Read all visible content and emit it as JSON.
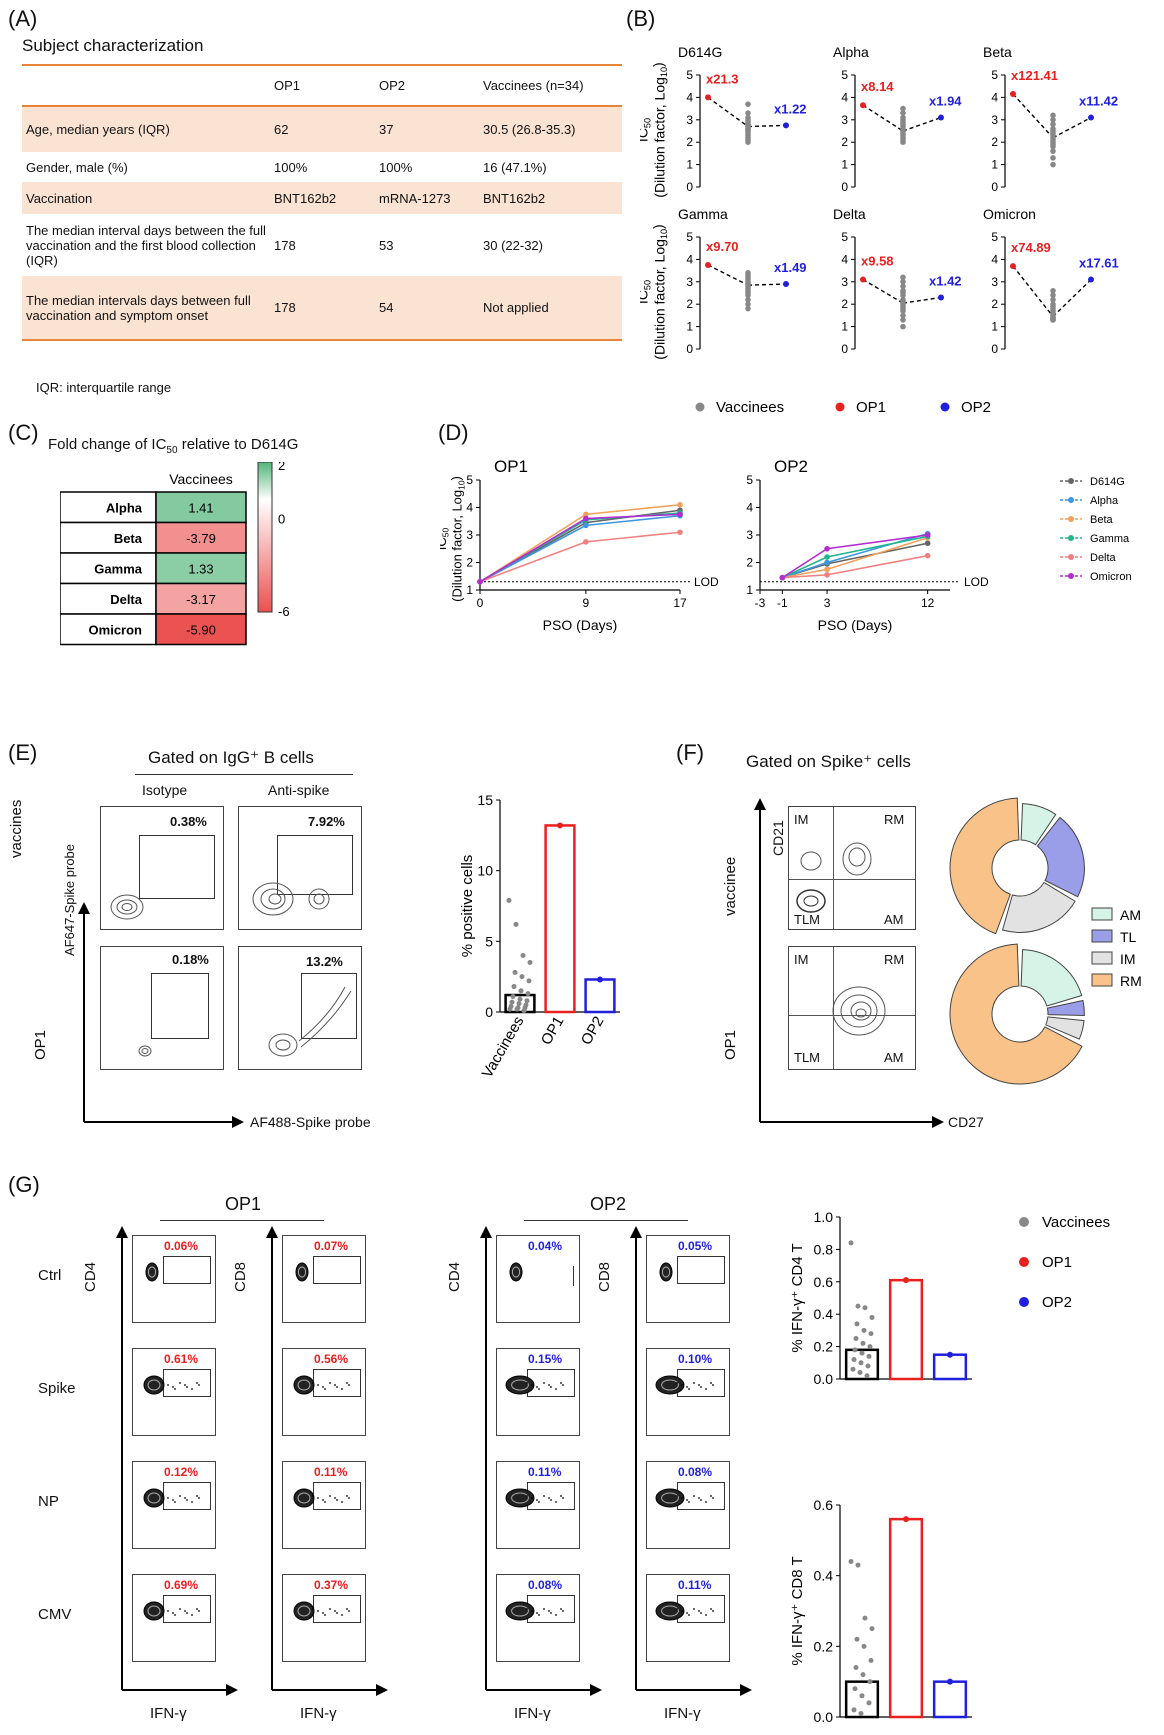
{
  "panels": {
    "A": "(A)",
    "B": "(B)",
    "C": "(C)",
    "D": "(D)",
    "E": "(E)",
    "F": "(F)",
    "G": "(G)"
  },
  "table": {
    "title": "Subject characterization",
    "headers": [
      "",
      "OP1",
      "OP2",
      "Vaccinees (n=34)"
    ],
    "rows": [
      [
        "Age, median years (IQR)",
        "62",
        "37",
        "30.5 (26.8-35.3)"
      ],
      [
        "Gender, male (%)",
        "100%",
        "100%",
        "16 (47.1%)"
      ],
      [
        "Vaccination",
        "BNT162b2",
        "mRNA-1273",
        "BNT162b2"
      ],
      [
        "The median interval days between the full vaccination and the first blood collection (IQR)",
        "178",
        "53",
        "30 (22-32)"
      ],
      [
        "The median intervals days between full vaccination and symptom onset",
        "178",
        "54",
        "Not applied"
      ]
    ],
    "footnote": "IQR: interquartile range",
    "stripe_color": "#fbe3d3",
    "rule_color": "#e8833a"
  },
  "ic50_ylabel_line1": "IC50",
  "ic50_ylabel_line2": "(Dilution factor, Log10)",
  "panel_b_legend": [
    "Vaccinees",
    "OP1",
    "OP2"
  ],
  "colors": {
    "vaccinees": "#888888",
    "op1": "#e8201e",
    "op2": "#1f1fdd"
  },
  "panel_c": {
    "title": "Fold change of IC50 relative to D614G",
    "column": "Vaccinees",
    "scale_max": "2",
    "scale_mid": "0",
    "scale_min": "-6"
  },
  "panel_e": {
    "gated_title": "Gated on IgG⁺ B cells",
    "col_labels": [
      "Isotype",
      "Anti-spike"
    ],
    "row_labels": [
      "vaccines",
      "OP1"
    ],
    "y_axis": "AF647-Spike probe",
    "x_axis": "AF488-Spike probe",
    "percents": [
      "0.38%",
      "7.92%",
      "0.18%",
      "13.2%"
    ],
    "bar_ylabel": "% positive cells"
  },
  "panel_f": {
    "gated_title": "Gated on Spike⁺ cells",
    "row_labels": [
      "vaccinee",
      "OP1"
    ],
    "quadrants": [
      "IM",
      "RM",
      "TLM",
      "AM"
    ],
    "y_axis": "CD21",
    "x_axis": "CD27",
    "legend": [
      "AM",
      "TL",
      "IM",
      "RM"
    ],
    "legend_colors": [
      "#d5f3e6",
      "#9a9ee8",
      "#e2e2e2",
      "#f9c289"
    ]
  },
  "panel_g": {
    "groups": [
      "OP1",
      "OP2"
    ],
    "row_labels": [
      "Ctrl",
      "Spike",
      "NP",
      "CMV"
    ],
    "ylabel_cd4": "CD4",
    "ylabel_cd8": "CD8",
    "xlabel": "IFN-γ",
    "op1_cd4": [
      "0.06%",
      "0.61%",
      "0.12%",
      "0.69%"
    ],
    "op1_cd8": [
      "0.07%",
      "0.56%",
      "0.11%",
      "0.37%"
    ],
    "op2_cd4": [
      "0.04%",
      "0.15%",
      "0.11%",
      "0.08%"
    ],
    "op2_cd8": [
      "0.05%",
      "0.10%",
      "0.08%",
      "0.11%"
    ],
    "legend": [
      "Vaccinees",
      "OP1",
      "OP2"
    ],
    "cd4_ylabel": "% IFN-γ⁺ CD4 T",
    "cd8_ylabel": "% IFN-γ⁺ CD8 T"
  },
  "chart_data": [
    {
      "type": "scatter",
      "panel": "B",
      "ylabel": "IC50 (Dilution factor, Log10)",
      "ylim": [
        0,
        5
      ],
      "subplots": [
        {
          "title": "D614G",
          "op1": 4.0,
          "op2": 2.75,
          "vacc_median": 2.7,
          "op1_fold": "x21.3",
          "op2_fold": "x1.22",
          "vaccinees": [
            3.7,
            3.3,
            3.1,
            3.0,
            2.9,
            2.8,
            2.8,
            2.7,
            2.7,
            2.6,
            2.6,
            2.5,
            2.5,
            2.4,
            2.3,
            2.2,
            2.1,
            2.0
          ]
        },
        {
          "title": "Alpha",
          "op1": 3.65,
          "op2": 3.1,
          "vacc_median": 2.5,
          "op1_fold": "x8.14",
          "op2_fold": "x1.94",
          "vaccinees": [
            3.5,
            3.3,
            3.1,
            3.0,
            2.9,
            2.8,
            2.7,
            2.6,
            2.5,
            2.5,
            2.4,
            2.3,
            2.2,
            2.1,
            2.0
          ]
        },
        {
          "title": "Beta",
          "op1": 4.15,
          "op2": 3.1,
          "vacc_median": 2.2,
          "op1_fold": "x121.41",
          "op2_fold": "x11.42",
          "vaccinees": [
            3.2,
            3.0,
            2.8,
            2.6,
            2.5,
            2.4,
            2.3,
            2.2,
            2.1,
            2.0,
            1.9,
            1.8,
            1.6,
            1.3,
            1.0
          ]
        },
        {
          "title": "Gamma",
          "op1": 3.75,
          "op2": 2.9,
          "vacc_median": 2.85,
          "op1_fold": "x9.70",
          "op2_fold": "x1.49",
          "vaccinees": [
            3.4,
            3.3,
            3.2,
            3.1,
            3.0,
            2.9,
            2.9,
            2.8,
            2.7,
            2.6,
            2.5,
            2.4,
            2.2,
            2.0,
            1.8
          ]
        },
        {
          "title": "Delta",
          "op1": 3.1,
          "op2": 2.3,
          "vacc_median": 2.05,
          "op1_fold": "x9.58",
          "op2_fold": "x1.42",
          "vaccinees": [
            3.2,
            3.0,
            2.8,
            2.6,
            2.5,
            2.4,
            2.2,
            2.1,
            2.0,
            1.9,
            1.8,
            1.7,
            1.5,
            1.3,
            1.0
          ]
        },
        {
          "title": "Omicron",
          "op1": 3.7,
          "op2": 3.1,
          "vacc_median": 1.45,
          "op1_fold": "x74.89",
          "op2_fold": "x17.61",
          "vaccinees": [
            2.6,
            2.4,
            2.2,
            2.0,
            1.9,
            1.8,
            1.7,
            1.6,
            1.5,
            1.4,
            1.4,
            1.35,
            1.3,
            1.3,
            1.3
          ]
        }
      ]
    },
    {
      "type": "heatmap",
      "panel": "C",
      "rows": [
        "Alpha",
        "Beta",
        "Gamma",
        "Delta",
        "Omicron"
      ],
      "values": [
        1.41,
        -3.79,
        1.33,
        -3.17,
        -5.9
      ],
      "value_labels": [
        "1.41",
        "-3.79",
        "1.33",
        "-3.17",
        "-5.90"
      ],
      "range": [
        -6,
        2
      ]
    },
    {
      "type": "line",
      "panel": "D",
      "xlabel": "PSO (Days)",
      "ylabel": "IC50 (Dilution factor, Log10)",
      "ylim": [
        1,
        5
      ],
      "lod_label": "LOD",
      "lod": 1.3,
      "series_names": [
        "D614G",
        "Alpha",
        "Beta",
        "Gamma",
        "Delta",
        "Omicron"
      ],
      "series_colors": [
        "#666666",
        "#3c97e0",
        "#f2a15b",
        "#1fb58f",
        "#f07f7f",
        "#b42bd1"
      ],
      "plots": [
        {
          "title": "OP1",
          "x": [
            0,
            9,
            17
          ],
          "xticks": [
            "0",
            "9",
            "17"
          ],
          "xlim": [
            0,
            17
          ],
          "series": [
            [
              1.3,
              3.45,
              3.9
            ],
            [
              1.3,
              3.35,
              3.7
            ],
            [
              1.3,
              3.75,
              4.1
            ],
            [
              1.3,
              3.55,
              3.8
            ],
            [
              1.3,
              2.75,
              3.1
            ],
            [
              1.3,
              3.6,
              3.75
            ]
          ]
        },
        {
          "title": "OP2",
          "x": [
            -1,
            3,
            12
          ],
          "xticks": [
            "-3",
            "-1",
            "3",
            "12"
          ],
          "xlim": [
            -3,
            14
          ],
          "series": [
            [
              1.45,
              1.95,
              2.7
            ],
            [
              1.45,
              2.0,
              3.05
            ],
            [
              1.45,
              1.75,
              2.9
            ],
            [
              1.45,
              2.2,
              2.95
            ],
            [
              1.45,
              1.55,
              2.25
            ],
            [
              1.45,
              2.5,
              3.0
            ]
          ]
        }
      ]
    },
    {
      "type": "bar",
      "panel": "E",
      "categories": [
        "Vaccinees",
        "OP1",
        "OP2"
      ],
      "values": [
        1.2,
        13.2,
        2.3
      ],
      "ylabel": "% positive cells",
      "ylim": [
        0,
        15
      ],
      "yticks": [
        "0",
        "5",
        "10",
        "15"
      ]
    },
    {
      "type": "pie",
      "panel": "F",
      "donuts": [
        {
          "label": "vaccinee",
          "slices": [
            {
              "name": "AM",
              "value": 10
            },
            {
              "name": "TL",
              "value": 23
            },
            {
              "name": "IM",
              "value": 22
            },
            {
              "name": "RM",
              "value": 45
            }
          ]
        },
        {
          "label": "OP1",
          "slices": [
            {
              "name": "AM",
              "value": 21
            },
            {
              "name": "TL",
              "value": 5
            },
            {
              "name": "IM",
              "value": 6
            },
            {
              "name": "RM",
              "value": 68
            }
          ]
        }
      ]
    },
    {
      "type": "bar",
      "panel": "G-CD4",
      "categories": [
        "Vaccinees",
        "OP1",
        "OP2"
      ],
      "values": [
        0.18,
        0.61,
        0.15
      ],
      "ylabel": "% IFN-γ⁺ CD4 T",
      "ylim": [
        0,
        1.0
      ],
      "yticks": [
        "0.0",
        "0.2",
        "0.4",
        "0.6",
        "0.8",
        "1.0"
      ]
    },
    {
      "type": "bar",
      "panel": "G-CD8",
      "categories": [
        "Vaccinees",
        "OP1",
        "OP2"
      ],
      "values": [
        0.1,
        0.56,
        0.1
      ],
      "ylabel": "% IFN-γ⁺ CD8 T",
      "ylim": [
        0,
        0.6
      ],
      "yticks": [
        "0.0",
        "0.2",
        "0.4",
        "0.6"
      ]
    }
  ]
}
